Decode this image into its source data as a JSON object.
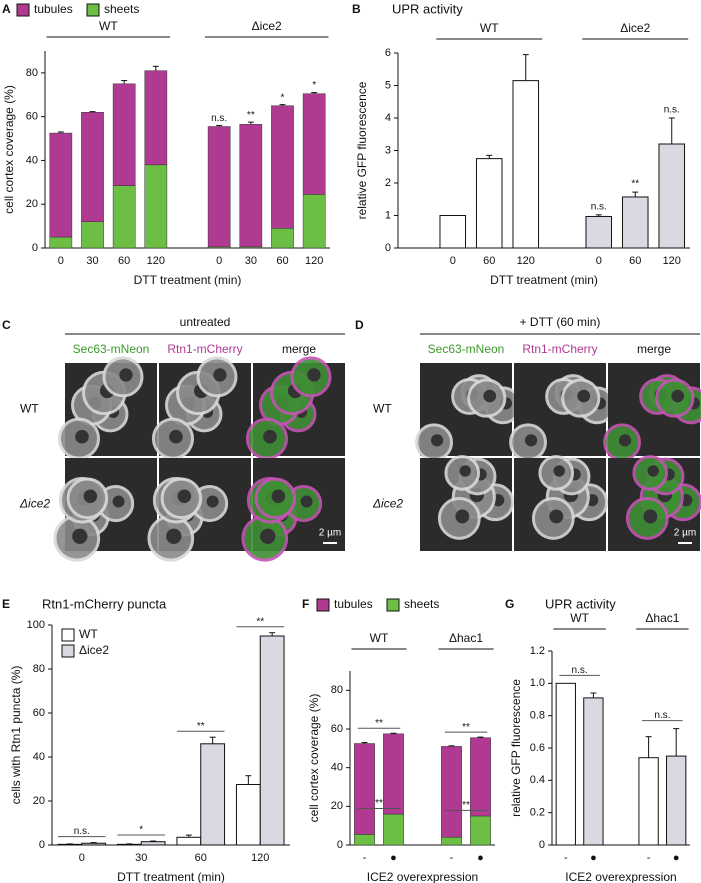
{
  "chart_data": [
    {
      "type": "stacked",
      "panel": "A",
      "ylabel": "cell cortex coverage (%)",
      "xlabel": "DTT treatment (min)",
      "groups": [
        "WT",
        "Δice2"
      ],
      "categories": [
        "0",
        "30",
        "60",
        "120",
        "0",
        "30",
        "60",
        "120"
      ],
      "legend": "top",
      "series": [
        {
          "name": "tubules",
          "color": "#b03a92",
          "values": [
            47.5,
            50,
            46.5,
            43,
            55,
            56,
            56,
            46
          ],
          "errors": [
            0.5,
            0.3,
            1.5,
            2,
            0.5,
            1,
            0.5,
            0.5
          ],
          "sig": [
            null,
            null,
            null,
            null,
            "n.s.",
            "**",
            "*",
            "*"
          ],
          "sig_color": "#111111"
        },
        {
          "name": "sheets",
          "color": "#6dbe45",
          "values": [
            5,
            12,
            28.5,
            38,
            0.5,
            0.5,
            9,
            24.5
          ],
          "errors": [
            0.5,
            0.5,
            1,
            2,
            0.3,
            0.3,
            0.5,
            0.5
          ],
          "sig": [
            null,
            null,
            null,
            null,
            "**",
            "**",
            "**",
            "**"
          ],
          "sig_color": "#ffffff"
        }
      ],
      "ylim": [
        0,
        90
      ],
      "yticks": [
        0,
        20,
        40,
        60,
        80
      ]
    },
    {
      "type": "bar",
      "panel": "B",
      "title": "UPR activity",
      "ylabel": "relative GFP fluorescence",
      "xlabel": "DTT treatment (min)",
      "groups": [
        "WT",
        "Δice2"
      ],
      "categories": [
        "0",
        "60",
        "120",
        "0",
        "60",
        "120"
      ],
      "values": [
        1,
        2.75,
        5.15,
        0.97,
        1.57,
        3.2
      ],
      "errors": [
        0,
        0.1,
        0.8,
        0.05,
        0.15,
        0.8
      ],
      "colors": [
        "#ffffff",
        "#ffffff",
        "#ffffff",
        "#d9d9e1",
        "#d9d9e1",
        "#d9d9e1"
      ],
      "sig": [
        null,
        null,
        null,
        "n.s.",
        "**",
        "n.s."
      ],
      "ylim": [
        0,
        6
      ],
      "yticks": [
        0,
        1,
        2,
        3,
        4,
        5,
        6
      ]
    },
    {
      "type": "grouped",
      "panel": "E",
      "title": "Rtn1-mCherry puncta",
      "ylabel": "cells with Rtn1 puncta (%)",
      "xlabel": "DTT treatment (min)",
      "categories": [
        "0",
        "30",
        "60",
        "120"
      ],
      "legend": "upper left",
      "series": [
        {
          "name": "WT",
          "color": "#ffffff",
          "values": [
            0.3,
            0.3,
            3.5,
            27.5
          ],
          "errors": [
            0.2,
            0.2,
            1,
            4
          ]
        },
        {
          "name": "Δice2",
          "color": "#d9d9e1",
          "values": [
            0.8,
            1.5,
            46,
            95
          ],
          "errors": [
            0.3,
            0.3,
            3,
            1.5
          ]
        }
      ],
      "sig": [
        "n.s.",
        "*",
        "**",
        "**"
      ],
      "ylim": [
        0,
        100
      ],
      "yticks": [
        0,
        20,
        40,
        60,
        80,
        100
      ]
    },
    {
      "type": "stacked",
      "panel": "F",
      "ylabel": "cell cortex coverage (%)",
      "xlabel": "ICE2 overexpression",
      "groups": [
        "WT",
        "Δhac1"
      ],
      "categories": [
        "-",
        "●",
        "-",
        "●"
      ],
      "legend": "top",
      "series": [
        {
          "name": "tubules",
          "color": "#b03a92",
          "values": [
            47,
            41.5,
            47,
            40.5
          ],
          "errors": [
            0.5,
            0.3,
            0.3,
            0.3
          ],
          "pair_sig": [
            "**",
            "**"
          ]
        },
        {
          "name": "sheets",
          "color": "#6dbe45",
          "values": [
            5.5,
            16,
            4,
            15
          ],
          "errors": [
            0.3,
            0.3,
            0.2,
            0.3
          ],
          "pair_sig": [
            "**",
            "**"
          ]
        }
      ],
      "ylim": [
        0,
        90
      ],
      "yticks": [
        0,
        20,
        40,
        60,
        80
      ]
    },
    {
      "type": "bar",
      "panel": "G",
      "title": "UPR activity",
      "ylabel": "relative GFP fluorescence",
      "xlabel": "ICE2 overexpression",
      "groups": [
        "WT",
        "Δhac1"
      ],
      "categories": [
        "-",
        "●",
        "-",
        "●"
      ],
      "values": [
        1,
        0.91,
        0.54,
        0.55
      ],
      "errors": [
        0,
        0.03,
        0.13,
        0.17
      ],
      "colors": [
        "#ffffff",
        "#d9d9e1",
        "#ffffff",
        "#d9d9e1"
      ],
      "pair_sig": [
        "n.s.",
        "n.s."
      ],
      "ylim": [
        0,
        1.2
      ],
      "yticks": [
        0,
        0.2,
        0.4,
        0.6,
        0.8,
        {
          "value": 1,
          "label": "1.0"
        },
        1.2
      ]
    }
  ],
  "micrographs": [
    {
      "panel": "C",
      "title": "untreated",
      "channels": [
        "Sec63-mNeon",
        "Rtn1-mCherry",
        "merge"
      ],
      "channel_colors": [
        "#3b9a2a",
        "#b03a92",
        "#111111"
      ],
      "rows": [
        "WT",
        "Δice2"
      ],
      "scale_bar": "2 µm"
    },
    {
      "panel": "D",
      "title": "+ DTT (60 min)",
      "channels": [
        "Sec63-mNeon",
        "Rtn1-mCherry",
        "merge"
      ],
      "channel_colors": [
        "#3b9a2a",
        "#b03a92",
        "#111111"
      ],
      "rows": [
        "WT",
        "Δice2"
      ],
      "scale_bar": "2 µm"
    }
  ]
}
